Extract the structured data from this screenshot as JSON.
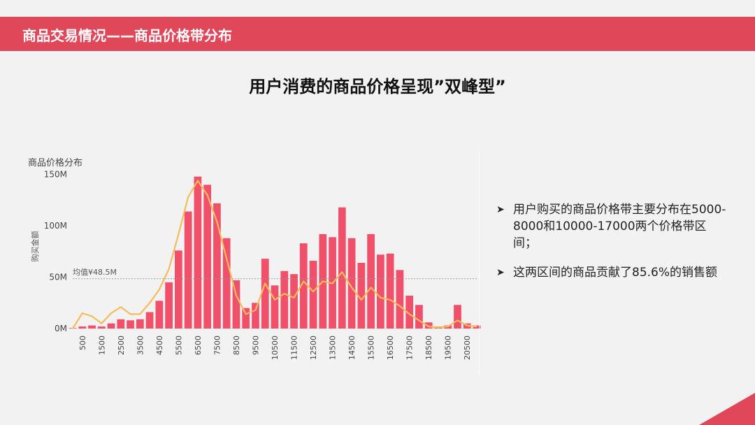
{
  "header": {
    "title": "商品交易情况——商品价格带分布"
  },
  "headline": "用户消费的商品价格呈现”双峰型”",
  "chart_data": {
    "type": "bar",
    "title": "商品价格分布",
    "ylabel": "购买金额",
    "xlabel": "",
    "ylim": [
      0,
      160
    ],
    "yticks": [
      {
        "value": 0,
        "label": "0M"
      },
      {
        "value": 50,
        "label": "50M"
      },
      {
        "value": 100,
        "label": "100M"
      },
      {
        "value": 150,
        "label": "150M"
      }
    ],
    "xticks": [
      "500",
      "1500",
      "2500",
      "3500",
      "4500",
      "5500",
      "6500",
      "7500",
      "8500",
      "9500",
      "10500",
      "11500",
      "12500",
      "13500",
      "14500",
      "15500",
      "16500",
      "17500",
      "18500",
      "19500",
      "20500"
    ],
    "x": [
      0,
      500,
      1000,
      1500,
      2000,
      2500,
      3000,
      3500,
      4000,
      4500,
      5000,
      5500,
      6000,
      6500,
      7000,
      7500,
      8000,
      8500,
      9000,
      9500,
      10000,
      10500,
      11000,
      11500,
      12000,
      12500,
      13000,
      13500,
      14000,
      14500,
      15000,
      15500,
      16000,
      16500,
      17000,
      17500,
      18000,
      18500,
      19000,
      19500,
      20000,
      20500,
      21000
    ],
    "series": [
      {
        "values": [
          0.5,
          2,
          3,
          2,
          5,
          9,
          8,
          9,
          16,
          27,
          45,
          76,
          114,
          148,
          140,
          122,
          88,
          47,
          20,
          25,
          68,
          42,
          56,
          53,
          83,
          66,
          92,
          89,
          118,
          88,
          64,
          92,
          72,
          73,
          57,
          32,
          23,
          6,
          2,
          3,
          23,
          5,
          3
        ],
        "color": "#f0506a"
      },
      {
        "values": [
          0,
          15,
          12,
          5,
          15,
          21,
          14,
          14,
          25,
          38,
          58,
          92,
          128,
          144,
          130,
          104,
          68,
          32,
          14,
          18,
          44,
          28,
          34,
          30,
          46,
          36,
          46,
          44,
          55,
          40,
          28,
          40,
          30,
          28,
          22,
          14,
          8,
          2,
          1,
          2,
          8,
          3,
          2
        ],
        "color": "#f6bb5c"
      }
    ],
    "annotations": [
      {
        "text": "均值¥48.5M",
        "value": 48.5
      }
    ]
  },
  "bullets": [
    "用户购买的商品价格带主要分布在5000-8000和10000-17000两个价格带区间；",
    "这两区间的商品贡献了85.6%的销售额"
  ],
  "colors": {
    "accent": "#e0485a",
    "bar": "#f0506a",
    "line": "#f6bb5c"
  }
}
